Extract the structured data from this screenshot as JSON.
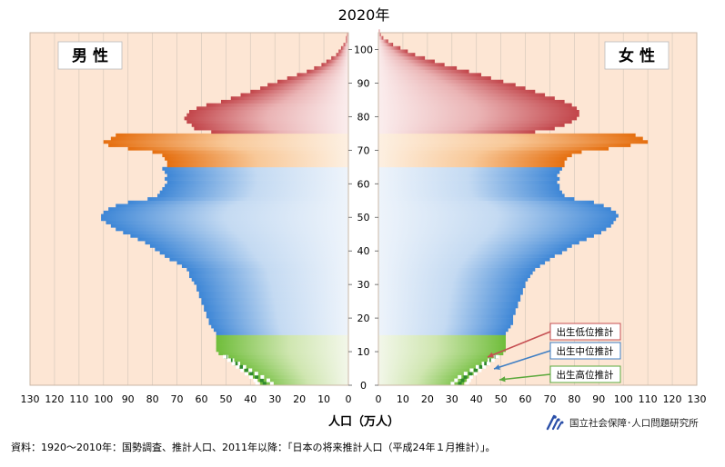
{
  "chart_data": {
    "type": "bar",
    "title": "2020年",
    "xlabel": "人口（万人）",
    "ylabel": "",
    "left_panel_label": "男 性",
    "right_panel_label": "女 性",
    "x_ticks_left": [
      "130",
      "120",
      "110",
      "100",
      "90",
      "80",
      "70",
      "60",
      "50",
      "40",
      "30",
      "20",
      "10",
      "0"
    ],
    "x_ticks_right": [
      "0",
      "10",
      "20",
      "30",
      "40",
      "50",
      "60",
      "70",
      "80",
      "90",
      "100",
      "110",
      "120",
      "130"
    ],
    "y_ticks": [
      "0",
      "10",
      "20",
      "30",
      "40",
      "50",
      "60",
      "70",
      "80",
      "90",
      "100"
    ],
    "xlim": [
      0,
      130
    ],
    "ylim": [
      0,
      105
    ],
    "age_groups": [
      {
        "name": "0-14",
        "color": "#7dc443"
      },
      {
        "name": "15-64",
        "color": "#4a8fd6"
      },
      {
        "name": "65-74",
        "color": "#e8781c"
      },
      {
        "name": "75+",
        "color": "#c64f52"
      }
    ],
    "male_keypoints": [
      [
        0,
        36
      ],
      [
        1,
        37
      ],
      [
        2,
        39
      ],
      [
        3,
        41
      ],
      [
        4,
        43
      ],
      [
        5,
        45
      ],
      [
        6,
        47
      ],
      [
        7,
        49
      ],
      [
        8,
        51
      ],
      [
        9,
        53
      ],
      [
        10,
        54
      ],
      [
        11,
        54
      ],
      [
        12,
        54
      ],
      [
        13,
        54
      ],
      [
        14,
        54
      ],
      [
        15,
        54
      ],
      [
        16,
        55
      ],
      [
        17,
        56
      ],
      [
        18,
        57
      ],
      [
        19,
        57
      ],
      [
        20,
        58
      ],
      [
        21,
        58
      ],
      [
        22,
        59
      ],
      [
        23,
        59
      ],
      [
        24,
        60
      ],
      [
        25,
        60
      ],
      [
        26,
        61
      ],
      [
        27,
        61
      ],
      [
        28,
        62
      ],
      [
        29,
        62
      ],
      [
        30,
        63
      ],
      [
        31,
        64
      ],
      [
        32,
        65
      ],
      [
        33,
        65
      ],
      [
        34,
        66
      ],
      [
        35,
        68
      ],
      [
        36,
        70
      ],
      [
        37,
        73
      ],
      [
        38,
        75
      ],
      [
        39,
        77
      ],
      [
        40,
        79
      ],
      [
        41,
        81
      ],
      [
        42,
        83
      ],
      [
        43,
        86
      ],
      [
        44,
        89
      ],
      [
        45,
        92
      ],
      [
        46,
        95
      ],
      [
        47,
        97
      ],
      [
        48,
        99
      ],
      [
        49,
        101
      ],
      [
        50,
        101
      ],
      [
        51,
        100
      ],
      [
        52,
        98
      ],
      [
        53,
        95
      ],
      [
        54,
        90
      ],
      [
        55,
        82
      ],
      [
        56,
        78
      ],
      [
        57,
        77
      ],
      [
        58,
        76
      ],
      [
        59,
        75
      ],
      [
        60,
        74
      ],
      [
        61,
        75
      ],
      [
        62,
        74
      ],
      [
        63,
        75
      ],
      [
        64,
        76
      ],
      [
        65,
        74
      ],
      [
        66,
        74
      ],
      [
        67,
        75
      ],
      [
        68,
        76
      ],
      [
        69,
        80
      ],
      [
        70,
        90
      ],
      [
        71,
        98
      ],
      [
        72,
        100
      ],
      [
        73,
        97
      ],
      [
        74,
        95
      ],
      [
        75,
        56
      ],
      [
        76,
        63
      ],
      [
        77,
        64
      ],
      [
        78,
        66
      ],
      [
        79,
        67
      ],
      [
        80,
        66
      ],
      [
        81,
        65
      ],
      [
        82,
        62
      ],
      [
        83,
        58
      ],
      [
        84,
        52
      ],
      [
        85,
        48
      ],
      [
        86,
        44
      ],
      [
        87,
        40
      ],
      [
        88,
        36
      ],
      [
        89,
        33
      ],
      [
        90,
        29
      ],
      [
        91,
        25
      ],
      [
        92,
        21
      ],
      [
        93,
        17
      ],
      [
        94,
        14
      ],
      [
        95,
        11
      ],
      [
        96,
        9
      ],
      [
        97,
        7
      ],
      [
        98,
        5
      ],
      [
        99,
        4
      ],
      [
        100,
        3
      ],
      [
        101,
        2
      ],
      [
        102,
        1
      ],
      [
        103,
        1
      ],
      [
        104,
        0.5
      ]
    ],
    "female_keypoints": [
      [
        0,
        35
      ],
      [
        1,
        36
      ],
      [
        2,
        37
      ],
      [
        3,
        39
      ],
      [
        4,
        41
      ],
      [
        5,
        43
      ],
      [
        6,
        45
      ],
      [
        7,
        47
      ],
      [
        8,
        49
      ],
      [
        9,
        51
      ],
      [
        10,
        52
      ],
      [
        11,
        52
      ],
      [
        12,
        52
      ],
      [
        13,
        52
      ],
      [
        14,
        52
      ],
      [
        15,
        52
      ],
      [
        16,
        53
      ],
      [
        17,
        54
      ],
      [
        18,
        55
      ],
      [
        19,
        55
      ],
      [
        20,
        55
      ],
      [
        21,
        56
      ],
      [
        22,
        56
      ],
      [
        23,
        57
      ],
      [
        24,
        57
      ],
      [
        25,
        58
      ],
      [
        26,
        58
      ],
      [
        27,
        59
      ],
      [
        28,
        59
      ],
      [
        29,
        60
      ],
      [
        30,
        60
      ],
      [
        31,
        61
      ],
      [
        32,
        62
      ],
      [
        33,
        63
      ],
      [
        34,
        64
      ],
      [
        35,
        66
      ],
      [
        36,
        68
      ],
      [
        37,
        70
      ],
      [
        38,
        72
      ],
      [
        39,
        75
      ],
      [
        40,
        77
      ],
      [
        41,
        79
      ],
      [
        42,
        82
      ],
      [
        43,
        85
      ],
      [
        44,
        88
      ],
      [
        45,
        91
      ],
      [
        46,
        93
      ],
      [
        47,
        95
      ],
      [
        48,
        96
      ],
      [
        49,
        97
      ],
      [
        50,
        98
      ],
      [
        51,
        97
      ],
      [
        52,
        95
      ],
      [
        53,
        92
      ],
      [
        54,
        88
      ],
      [
        55,
        80
      ],
      [
        56,
        76
      ],
      [
        57,
        75
      ],
      [
        58,
        74
      ],
      [
        59,
        74
      ],
      [
        60,
        73
      ],
      [
        61,
        74
      ],
      [
        62,
        73
      ],
      [
        63,
        74
      ],
      [
        64,
        75
      ],
      [
        65,
        76
      ],
      [
        66,
        76
      ],
      [
        67,
        77
      ],
      [
        68,
        79
      ],
      [
        69,
        83
      ],
      [
        70,
        94
      ],
      [
        71,
        103
      ],
      [
        72,
        110
      ],
      [
        73,
        108
      ],
      [
        74,
        105
      ],
      [
        75,
        64
      ],
      [
        76,
        72
      ],
      [
        77,
        76
      ],
      [
        78,
        79
      ],
      [
        79,
        81
      ],
      [
        80,
        82
      ],
      [
        81,
        82
      ],
      [
        82,
        81
      ],
      [
        83,
        79
      ],
      [
        84,
        76
      ],
      [
        85,
        72
      ],
      [
        86,
        68
      ],
      [
        87,
        64
      ],
      [
        88,
        60
      ],
      [
        89,
        56
      ],
      [
        90,
        51
      ],
      [
        91,
        46
      ],
      [
        92,
        42
      ],
      [
        93,
        37
      ],
      [
        94,
        32
      ],
      [
        95,
        27
      ],
      [
        96,
        23
      ],
      [
        97,
        19
      ],
      [
        98,
        15
      ],
      [
        99,
        12
      ],
      [
        100,
        9
      ],
      [
        101,
        6
      ],
      [
        102,
        4
      ],
      [
        103,
        2
      ],
      [
        104,
        1
      ],
      [
        105,
        0.5
      ]
    ],
    "projection_labels": [
      {
        "text": "出生低位推計",
        "color": "#c64f52"
      },
      {
        "text": "出生中位推計",
        "color": "#3f7fc4"
      },
      {
        "text": "出生高位推計",
        "color": "#5aa83b"
      }
    ]
  },
  "footer": {
    "source": "資料：1920～2010年：国勢調査、推計人口、2011年以降：「日本の将来推計人口（平成24年１月推計）」。",
    "org": "国立社会保障･人口問題研究所"
  }
}
